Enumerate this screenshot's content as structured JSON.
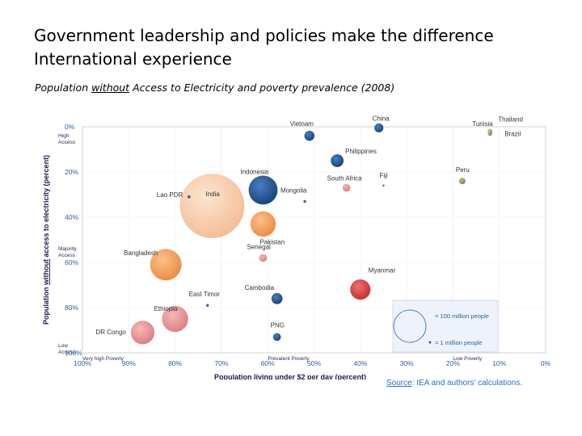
{
  "header": {
    "title_line1": "Government leadership and policies make the difference",
    "title_line2": "International experience",
    "subtitle_pre": "Population ",
    "subtitle_under": "without",
    "subtitle_post": " Access to Electricity and  poverty prevalence (2008)"
  },
  "source": {
    "label": "Source",
    "text": ": IEA and authors' calculations."
  },
  "colors": {
    "dark_blue": "#1f4e8c",
    "orange": "#f0a060",
    "pink": "#e89090",
    "red": "#d84040",
    "olive": "#a09860",
    "light_orange": "#f7c9a0",
    "axis_blue": "#2b5fa6"
  },
  "chart_data": {
    "type": "scatter",
    "title": "Population without Access to Electricity and poverty prevalence (2008)",
    "xlabel": "Population living under $2 per day (percent)",
    "ylabel": "Population without access to electricity (percent)",
    "x_range": [
      100,
      0
    ],
    "y_range": [
      0,
      100
    ],
    "x_ticks": [
      "100%",
      "90%",
      "80%",
      "70%",
      "60%",
      "50%",
      "40%",
      "30%",
      "20%",
      "10%",
      "0%"
    ],
    "y_ticks": [
      "0%",
      "20%",
      "40%",
      "60%",
      "80%",
      "100%"
    ],
    "x_annotations": [
      "Very high Poverty",
      "Prevalent Poverty",
      "Low Poverty"
    ],
    "y_annotations": [
      "High Access",
      "Majority Access",
      "Low Access"
    ],
    "legend": {
      "large": "= 100 million  people",
      "small": "= 1 million  people"
    },
    "points": [
      {
        "name": "China",
        "x": 36,
        "y": 0.5,
        "pop": 8,
        "color": "dark_blue"
      },
      {
        "name": "Vietnam",
        "x": 51,
        "y": 4,
        "pop": 10,
        "color": "dark_blue"
      },
      {
        "name": "Thailand",
        "x": 12,
        "y": 2,
        "pop": 2,
        "color": "olive"
      },
      {
        "name": "Tunisia",
        "x": 12,
        "y": 2.5,
        "pop": 1,
        "color": "olive"
      },
      {
        "name": "Brazil",
        "x": 12,
        "y": 3,
        "pop": 2,
        "color": "olive"
      },
      {
        "name": "Philippines",
        "x": 45,
        "y": 15,
        "pop": 16,
        "color": "dark_blue"
      },
      {
        "name": "Peru",
        "x": 18,
        "y": 24,
        "pop": 4,
        "color": "olive"
      },
      {
        "name": "South Africa",
        "x": 43,
        "y": 27,
        "pop": 6,
        "color": "pink"
      },
      {
        "name": "Fiji",
        "x": 35,
        "y": 26,
        "pop": 0.1,
        "color": "dark_blue"
      },
      {
        "name": "India",
        "x": 72,
        "y": 35,
        "pop": 400,
        "color": "light_orange"
      },
      {
        "name": "Lao PDR",
        "x": 77,
        "y": 31,
        "pop": 1,
        "color": "dark_blue"
      },
      {
        "name": "Indonesia",
        "x": 61,
        "y": 28,
        "pop": 81,
        "color": "dark_blue"
      },
      {
        "name": "Mongolia",
        "x": 52,
        "y": 33,
        "pop": 0.8,
        "color": "dark_blue"
      },
      {
        "name": "Pakistan",
        "x": 61,
        "y": 43,
        "pop": 62,
        "color": "orange"
      },
      {
        "name": "Senegal",
        "x": 61,
        "y": 58,
        "pop": 6,
        "color": "pink"
      },
      {
        "name": "Bangladesh",
        "x": 82,
        "y": 61,
        "pop": 96,
        "color": "orange"
      },
      {
        "name": "Cambodia",
        "x": 58,
        "y": 76,
        "pop": 12,
        "color": "dark_blue"
      },
      {
        "name": "Myanmar",
        "x": 40,
        "y": 72,
        "pop": 40,
        "color": "red"
      },
      {
        "name": "East Timor",
        "x": 73,
        "y": 79,
        "pop": 0.8,
        "color": "dark_blue"
      },
      {
        "name": "Ethiopia",
        "x": 80,
        "y": 85,
        "pop": 66,
        "color": "pink"
      },
      {
        "name": "PNG",
        "x": 58,
        "y": 93,
        "pop": 6,
        "color": "dark_blue"
      },
      {
        "name": "DR Congo",
        "x": 87,
        "y": 91,
        "pop": 54,
        "color": "pink"
      }
    ]
  }
}
